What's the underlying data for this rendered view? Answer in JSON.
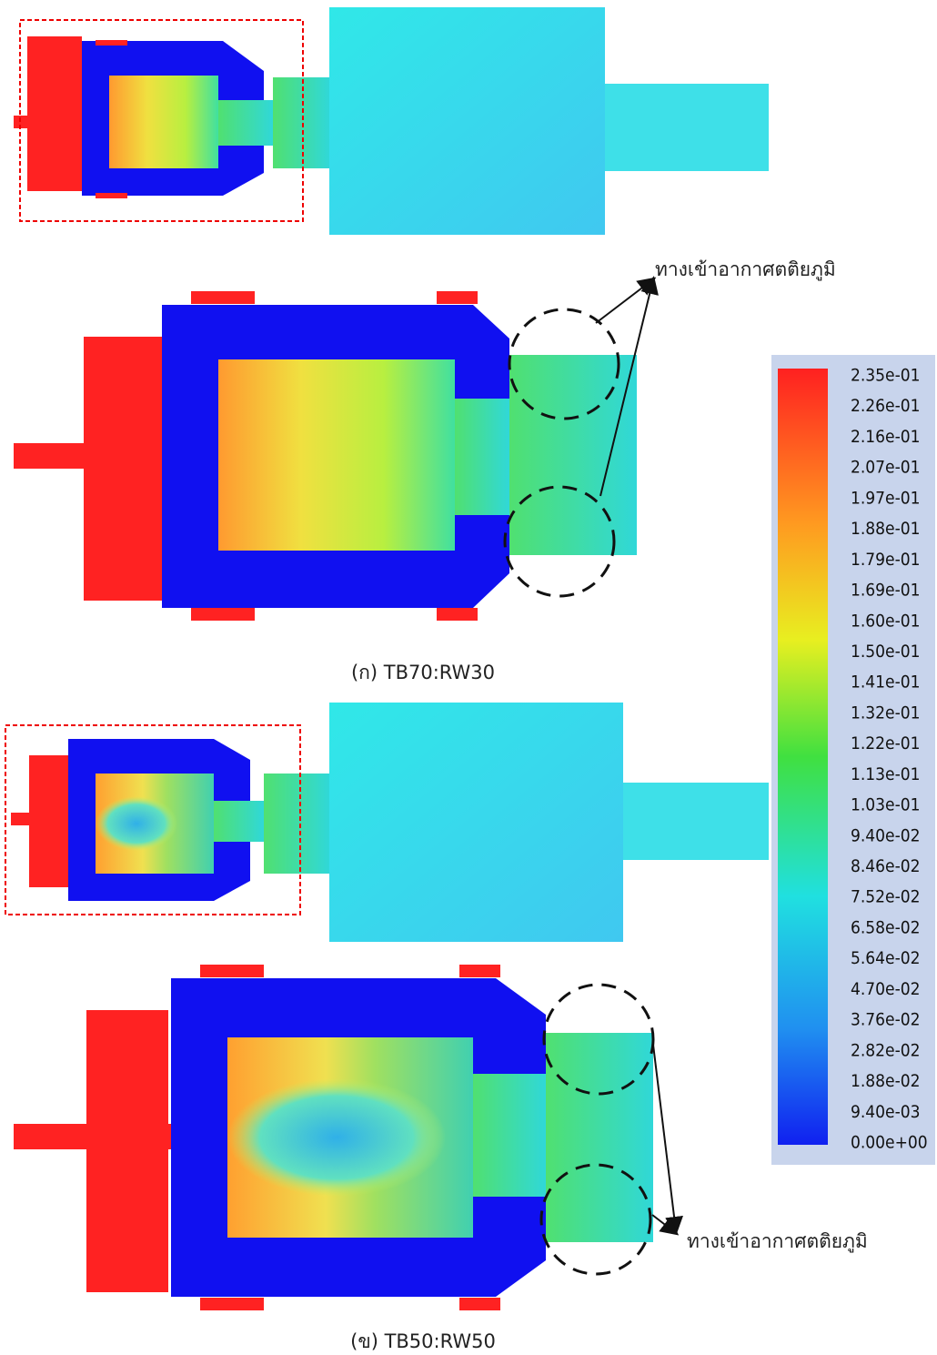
{
  "annotations": {
    "top": "ทางเข้าอากาศตติยภูมิ",
    "bottom": "ทางเข้าอากาศตติยภูมิ"
  },
  "captions": {
    "a": "(ก) TB70:RW30",
    "b": "(ข) TB50:RW50"
  },
  "colorbar": {
    "labels": [
      "2.35e-01",
      "2.26e-01",
      "2.16e-01",
      "2.07e-01",
      "1.97e-01",
      "1.88e-01",
      "1.79e-01",
      "1.69e-01",
      "1.60e-01",
      "1.50e-01",
      "1.41e-01",
      "1.32e-01",
      "1.22e-01",
      "1.13e-01",
      "1.03e-01",
      "9.40e-02",
      "8.46e-02",
      "7.52e-02",
      "6.58e-02",
      "5.64e-02",
      "4.70e-02",
      "3.76e-02",
      "2.82e-02",
      "1.88e-02",
      "9.40e-03",
      "0.00e+00"
    ]
  }
}
